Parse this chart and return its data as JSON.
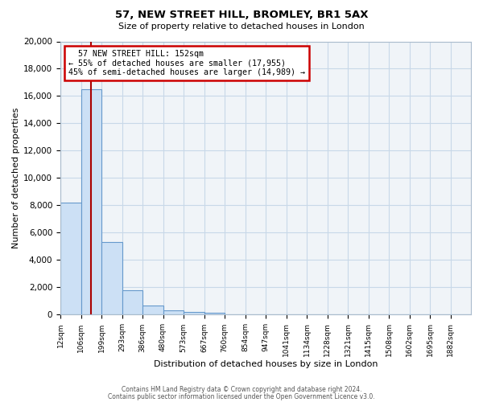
{
  "title": "57, NEW STREET HILL, BROMLEY, BR1 5AX",
  "subtitle": "Size of property relative to detached houses in London",
  "xlabel": "Distribution of detached houses by size in London",
  "ylabel": "Number of detached properties",
  "bar_values": [
    8200,
    16500,
    5300,
    1800,
    700,
    300,
    200,
    150,
    0,
    0,
    0,
    0,
    0,
    0,
    0,
    0,
    0,
    0,
    0,
    0
  ],
  "bin_labels": [
    "12sqm",
    "106sqm",
    "199sqm",
    "293sqm",
    "386sqm",
    "480sqm",
    "573sqm",
    "667sqm",
    "760sqm",
    "854sqm",
    "947sqm",
    "1041sqm",
    "1134sqm",
    "1228sqm",
    "1321sqm",
    "1415sqm",
    "1508sqm",
    "1602sqm",
    "1695sqm",
    "1882sqm"
  ],
  "bar_color": "#cce0f5",
  "bar_edge_color": "#6699cc",
  "bar_edge_width": 0.8,
  "annotation_title": "57 NEW STREET HILL: 152sqm",
  "annotation_line1": "← 55% of detached houses are smaller (17,955)",
  "annotation_line2": "45% of semi-detached houses are larger (14,989) →",
  "annotation_box_color": "#ffffff",
  "annotation_box_edge": "#cc0000",
  "redline_color": "#aa0000",
  "ylim": [
    0,
    20000
  ],
  "yticks": [
    0,
    2000,
    4000,
    6000,
    8000,
    10000,
    12000,
    14000,
    16000,
    18000,
    20000
  ],
  "grid_color": "#c8d8e8",
  "background_color": "#f0f4f8",
  "footer1": "Contains HM Land Registry data © Crown copyright and database right 2024.",
  "footer2": "Contains public sector information licensed under the Open Government Licence v3.0."
}
